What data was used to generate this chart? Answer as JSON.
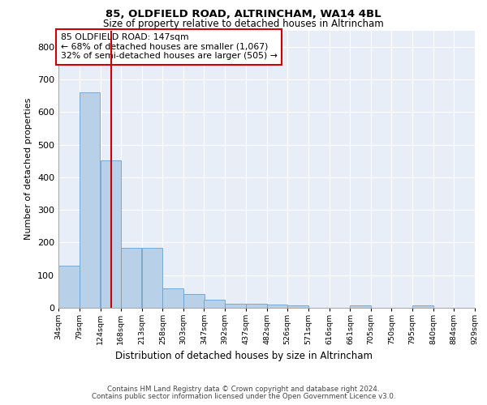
{
  "title_line1": "85, OLDFIELD ROAD, ALTRINCHAM, WA14 4BL",
  "title_line2": "Size of property relative to detached houses in Altrincham",
  "xlabel": "Distribution of detached houses by size in Altrincham",
  "ylabel": "Number of detached properties",
  "bar_color": "#b8d0e8",
  "bar_edge_color": "#6aa0cc",
  "bg_color": "#e8eef8",
  "grid_color": "#ffffff",
  "vline_x": 147,
  "vline_color": "#cc0000",
  "annotation_box_text": "85 OLDFIELD ROAD: 147sqm\n← 68% of detached houses are smaller (1,067)\n32% of semi-detached houses are larger (505) →",
  "annotation_box_color": "#cc0000",
  "footer_line1": "Contains HM Land Registry data © Crown copyright and database right 2024.",
  "footer_line2": "Contains public sector information licensed under the Open Government Licence v3.0.",
  "bin_edges": [
    34,
    79,
    124,
    168,
    213,
    258,
    303,
    347,
    392,
    437,
    482,
    526,
    571,
    616,
    661,
    705,
    750,
    795,
    840,
    884,
    929
  ],
  "bin_labels": [
    "34sqm",
    "79sqm",
    "124sqm",
    "168sqm",
    "213sqm",
    "258sqm",
    "303sqm",
    "347sqm",
    "392sqm",
    "437sqm",
    "482sqm",
    "526sqm",
    "571sqm",
    "616sqm",
    "661sqm",
    "705sqm",
    "750sqm",
    "795sqm",
    "840sqm",
    "884sqm",
    "929sqm"
  ],
  "counts": [
    128,
    660,
    452,
    183,
    183,
    60,
    43,
    25,
    12,
    13,
    11,
    8,
    0,
    0,
    7,
    0,
    0,
    8,
    0,
    0
  ],
  "ylim": [
    0,
    850
  ],
  "yticks": [
    0,
    100,
    200,
    300,
    400,
    500,
    600,
    700,
    800
  ]
}
